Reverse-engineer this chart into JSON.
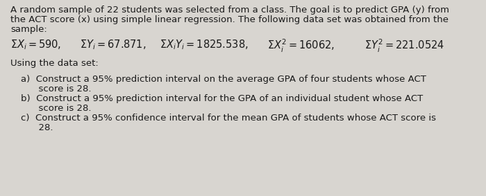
{
  "bg_color": "#d8d5d0",
  "text_color": "#1a1a1a",
  "font_family": "sans-serif",
  "font_size": 9.5,
  "font_size_stats": 10.5,
  "lines": [
    "A random sample of 22 students was selected from a class. The goal is to predict GPA (y) from",
    "the ACT score (x) using simple linear regression. The following data set was obtained from the",
    "sample:"
  ],
  "using_line": "Using the data set:",
  "item_a1": "a)  Construct a 95% prediction interval on the average GPA of four students whose ACT",
  "item_a2": "      score is 28.",
  "item_b1": "b)  Construct a 95% prediction interval for the GPA of an individual student whose ACT",
  "item_b2": "      score is 28.",
  "item_c1": "c)  Construct a 95% confidence interval for the mean GPA of students whose ACT score is",
  "item_c2": "      28."
}
